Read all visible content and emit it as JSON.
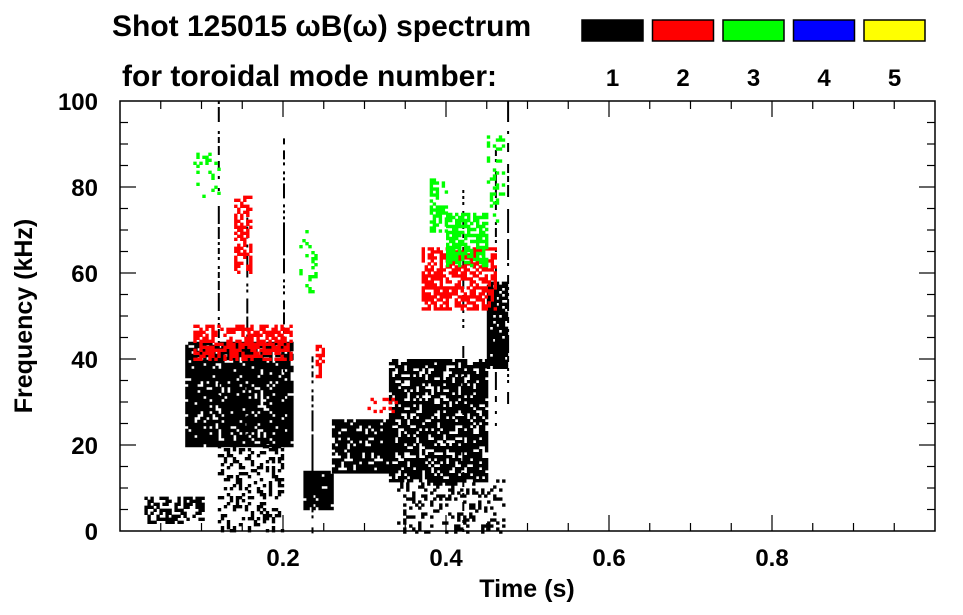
{
  "chart_data": {
    "type": "heatmap",
    "title": "Shot 125015 ωB(ω) spectrum",
    "legend_title": "for toroidal mode number:",
    "xlabel": "Time (s)",
    "ylabel": "Frequency (kHz)",
    "xlim": [
      0.0,
      1.0
    ],
    "ylim": [
      0,
      100
    ],
    "x_ticks": [
      0.2,
      0.4,
      0.6,
      0.8
    ],
    "x_tick_labels": [
      "0.2",
      "0.4",
      "0.6",
      "0.8"
    ],
    "y_ticks": [
      0,
      20,
      40,
      60,
      80,
      100
    ],
    "y_tick_labels": [
      "0",
      "20",
      "40",
      "60",
      "80",
      "100"
    ],
    "legend_placement": "top-right",
    "series": [
      {
        "name": "1",
        "color": "#000000",
        "regions": [
          {
            "t": [
              0.03,
              0.1
            ],
            "f": [
              2,
              8
            ],
            "density": 0.5
          },
          {
            "t": [
              0.08,
              0.21
            ],
            "f": [
              20,
              44
            ],
            "density": 0.85
          },
          {
            "t": [
              0.12,
              0.2
            ],
            "f": [
              0,
              20
            ],
            "density": 0.3
          },
          {
            "t": [
              0.225,
              0.26
            ],
            "f": [
              5,
              14
            ],
            "density": 0.9
          },
          {
            "t": [
              0.26,
              0.335
            ],
            "f": [
              14,
              26
            ],
            "density": 0.8
          },
          {
            "t": [
              0.33,
              0.45
            ],
            "f": [
              12,
              40
            ],
            "density": 0.75
          },
          {
            "t": [
              0.45,
              0.475
            ],
            "f": [
              38,
              58
            ],
            "density": 0.85
          },
          {
            "t": [
              0.34,
              0.47
            ],
            "f": [
              0,
              12
            ],
            "density": 0.25
          }
        ]
      },
      {
        "name": "2",
        "color": "#ff0000",
        "regions": [
          {
            "t": [
              0.09,
              0.21
            ],
            "f": [
              40,
              48
            ],
            "density": 0.6
          },
          {
            "t": [
              0.14,
              0.16
            ],
            "f": [
              60,
              78
            ],
            "density": 0.5
          },
          {
            "t": [
              0.24,
              0.25
            ],
            "f": [
              36,
              44
            ],
            "density": 0.4
          },
          {
            "t": [
              0.37,
              0.46
            ],
            "f": [
              52,
              66
            ],
            "density": 0.6
          },
          {
            "t": [
              0.3,
              0.34
            ],
            "f": [
              28,
              31
            ],
            "density": 0.3
          }
        ]
      },
      {
        "name": "3",
        "color": "#00ff00",
        "regions": [
          {
            "t": [
              0.38,
              0.4
            ],
            "f": [
              70,
              82
            ],
            "density": 0.5
          },
          {
            "t": [
              0.4,
              0.45
            ],
            "f": [
              62,
              74
            ],
            "density": 0.65
          },
          {
            "t": [
              0.09,
              0.12
            ],
            "f": [
              78,
              88
            ],
            "density": 0.15
          },
          {
            "t": [
              0.22,
              0.24
            ],
            "f": [
              56,
              70
            ],
            "density": 0.15
          },
          {
            "t": [
              0.45,
              0.47
            ],
            "f": [
              72,
              92
            ],
            "density": 0.2
          }
        ]
      },
      {
        "name": "4",
        "color": "#0000ff",
        "regions": []
      },
      {
        "name": "5",
        "color": "#ffff00",
        "regions": []
      }
    ],
    "vertical_streaks": [
      {
        "t": 0.12,
        "f": [
          30,
          100
        ]
      },
      {
        "t": 0.155,
        "f": [
          20,
          75
        ]
      },
      {
        "t": 0.2,
        "f": [
          20,
          92
        ]
      },
      {
        "t": 0.235,
        "f": [
          0,
          42
        ]
      },
      {
        "t": 0.42,
        "f": [
          0,
          80
        ]
      },
      {
        "t": 0.46,
        "f": [
          25,
          90
        ]
      },
      {
        "t": 0.475,
        "f": [
          30,
          100
        ]
      }
    ]
  }
}
